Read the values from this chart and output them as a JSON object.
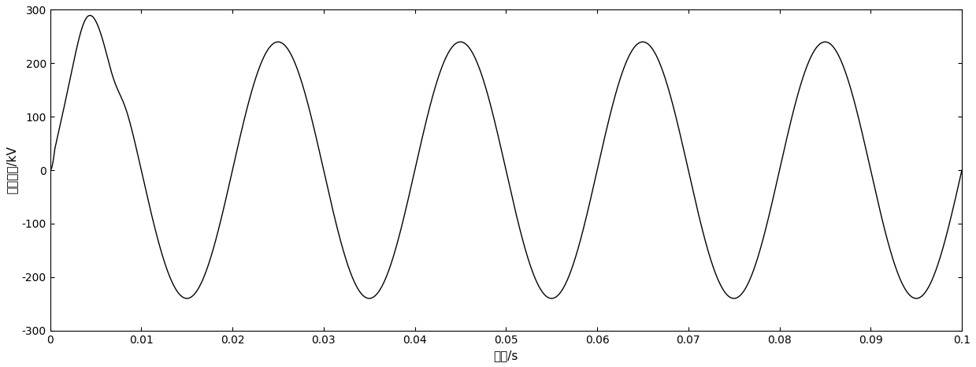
{
  "xlabel": "时间/s",
  "ylabel": "末端电压/kV",
  "xlim": [
    0,
    0.1
  ],
  "ylim": [
    -300,
    300
  ],
  "xticks": [
    0,
    0.01,
    0.02,
    0.03,
    0.04,
    0.05,
    0.06,
    0.07,
    0.08,
    0.09,
    0.1
  ],
  "yticks": [
    -300,
    -200,
    -100,
    0,
    100,
    200,
    300
  ],
  "line_color": "#000000",
  "line_width": 1.0,
  "bg_color": "#ffffff",
  "freq": 50,
  "amplitude": 240,
  "trans_spike_amp": 90,
  "trans_spike_decay": 0.0025,
  "trans_spike_freq": 250,
  "trans2_amp": 30,
  "trans2_decay": 0.004,
  "trans2_freq": 100,
  "figsize": [
    12.39,
    4.66
  ],
  "dpi": 100
}
